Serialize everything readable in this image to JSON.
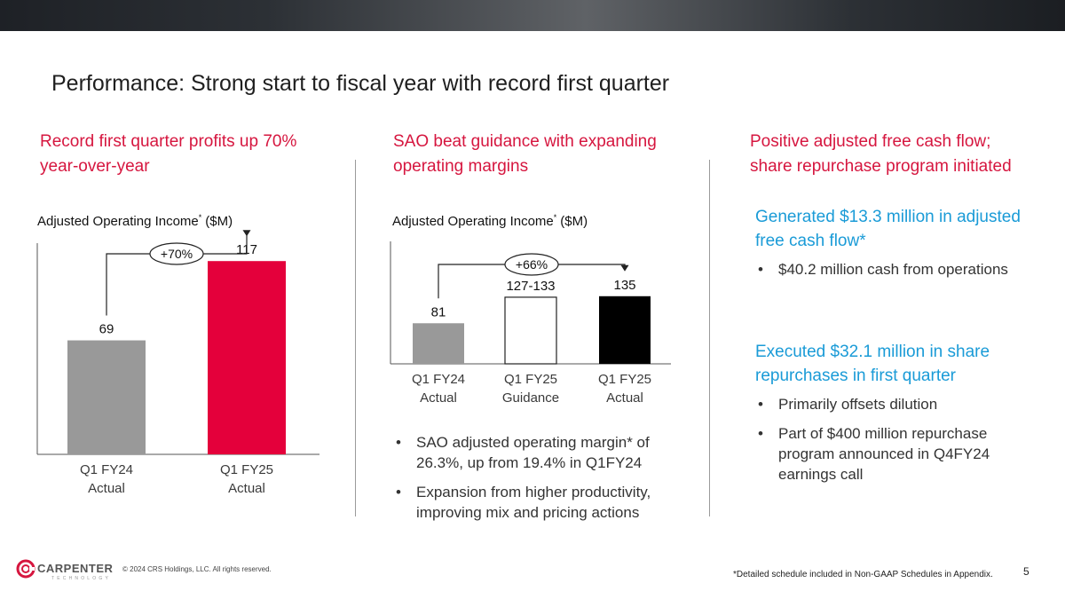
{
  "slide": {
    "title": "Performance: Strong start to fiscal year with record first quarter",
    "page_number": "5",
    "copyright": "© 2024 CRS Holdings, LLC. All rights reserved.",
    "footnote": "*Detailed schedule included in Non-GAAP Schedules in Appendix.",
    "logo": {
      "name": "CARPENTER",
      "sub": "TECHNOLOGY",
      "icon": "carpenter-logo-icon"
    }
  },
  "colors": {
    "accent_red": "#d6163f",
    "accent_blue": "#1a9bd7",
    "bar_gray": "#999999",
    "bar_red": "#e4003b",
    "bar_black": "#000000"
  },
  "columns": {
    "left": {
      "heading_line1": "Record first quarter profits up 70%",
      "heading_line2": "year-over-year"
    },
    "middle": {
      "heading_line1": "SAO beat guidance with expanding",
      "heading_line2": "operating margins",
      "bullets": [
        "SAO adjusted operating margin* of 26.3%, up from 19.4% in Q1FY24",
        "Expansion from higher productivity, improving mix and pricing actions"
      ]
    },
    "right": {
      "heading_line1": "Positive adjusted free cash flow;",
      "heading_line2": "share repurchase program initiated",
      "sections": [
        {
          "headline": "Generated $13.3 million in adjusted free cash flow*",
          "bullets": [
            "$40.2 million cash from operations"
          ]
        },
        {
          "headline": "Executed $32.1 million in share repurchases in first quarter",
          "bullets": [
            "Primarily offsets dilution",
            "Part of $400 million repurchase program announced in Q4FY24 earnings call"
          ]
        }
      ]
    }
  },
  "chart_data": [
    {
      "type": "bar",
      "title": "Adjusted Operating Income",
      "title_sup": "*",
      "title_unit": "($M)",
      "categories": [
        [
          "Q1 FY24",
          "Actual"
        ],
        [
          "Q1 FY25",
          "Actual"
        ]
      ],
      "values": [
        69,
        117
      ],
      "value_labels": [
        "69",
        "117"
      ],
      "bar_colors": [
        "#999999",
        "#e4003b"
      ],
      "growth_label": "+70%",
      "ylim": [
        0,
        130
      ]
    },
    {
      "type": "bar",
      "title": "Adjusted Operating Income",
      "title_sup": "*",
      "title_unit": "($M)",
      "categories": [
        [
          "Q1 FY24",
          "Actual"
        ],
        [
          "Q1 FY25",
          "Guidance"
        ],
        [
          "Q1 FY25",
          "Actual"
        ]
      ],
      "values": [
        81,
        133,
        135
      ],
      "value_labels": [
        "81",
        "127-133",
        "135"
      ],
      "bar_colors": [
        "#999999",
        "#ffffff",
        "#000000"
      ],
      "growth_label": "+66%",
      "ylim": [
        0,
        248
      ]
    }
  ]
}
